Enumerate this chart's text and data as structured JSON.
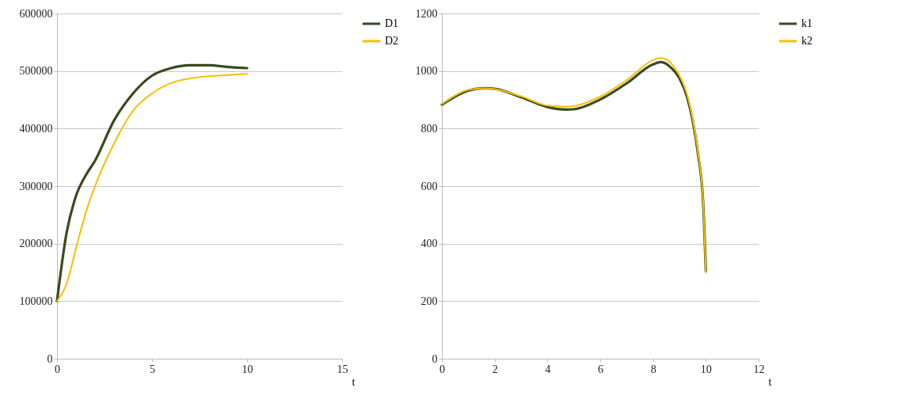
{
  "chart_data": [
    {
      "type": "line",
      "xlabel": "t",
      "x": [
        0,
        0.5,
        1,
        1.5,
        2,
        3,
        4,
        5,
        6,
        7,
        8,
        9,
        10
      ],
      "xlim": [
        0,
        15
      ],
      "xticks": [
        0,
        5,
        10,
        15
      ],
      "ylim": [
        0,
        600000
      ],
      "yticks": [
        0,
        100000,
        200000,
        300000,
        400000,
        500000,
        600000
      ],
      "grid": "y",
      "legend": "right",
      "series": [
        {
          "name": "D1",
          "color": "#3a4a1e",
          "values": [
            100000,
            218000,
            283000,
            318000,
            344000,
            414000,
            461000,
            492000,
            505000,
            510000,
            510000,
            507000,
            505000
          ]
        },
        {
          "name": "D2",
          "color": "#f5c000",
          "values": [
            100000,
            130000,
            192000,
            252000,
            300000,
            374000,
            431000,
            461000,
            479000,
            487000,
            491000,
            493000,
            495000
          ]
        }
      ]
    },
    {
      "type": "line",
      "xlabel": "t",
      "x": [
        0,
        1,
        1.6,
        2,
        3,
        4,
        4.7,
        5,
        6,
        7,
        8,
        8.3,
        8.7,
        9,
        9.3,
        9.5,
        9.7,
        9.9,
        10
      ],
      "xlim": [
        0,
        12
      ],
      "xticks": [
        0,
        2,
        4,
        6,
        8,
        10,
        12
      ],
      "ylim": [
        0,
        1200
      ],
      "yticks": [
        0,
        200,
        400,
        600,
        800,
        1000,
        1200
      ],
      "grid": "y",
      "legend": "right",
      "series": [
        {
          "name": "k1",
          "color": "#3a4a1e",
          "values": [
            883,
            932,
            940,
            938,
            909,
            875,
            866,
            867,
            901,
            957,
            1023,
            1031,
            1010,
            975,
            906,
            828,
            714,
            540,
            305
          ]
        },
        {
          "name": "k2",
          "color": "#f5c000",
          "values": [
            885,
            934,
            940,
            937,
            912,
            880,
            876,
            878,
            911,
            968,
            1038,
            1045,
            1025,
            985,
            915,
            835,
            720,
            545,
            300
          ]
        }
      ]
    }
  ]
}
